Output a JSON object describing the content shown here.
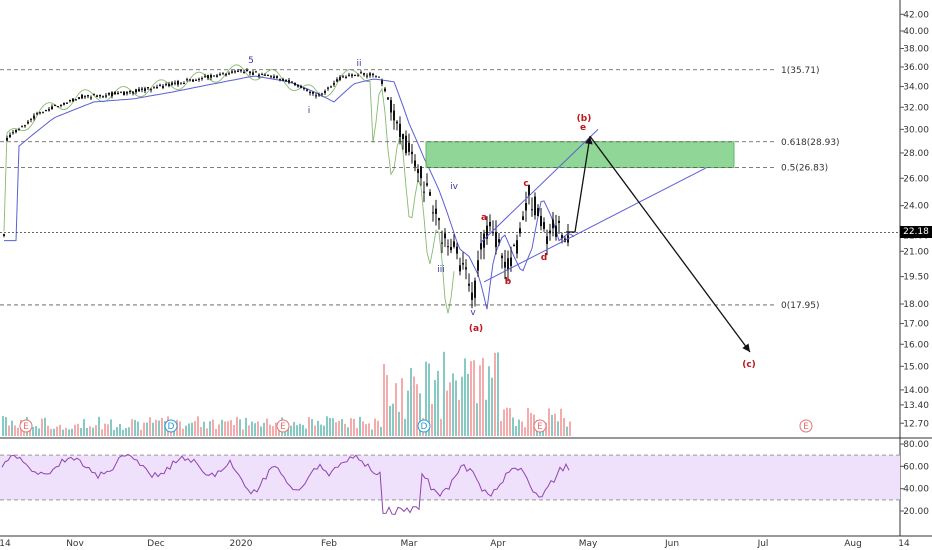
{
  "chart_data": {
    "type": "candlestick",
    "price_axis": {
      "ticks": [
        "42.00",
        "40.00",
        "38.00",
        "36.00",
        "34.00",
        "32.00",
        "30.00",
        "28.00",
        "26.00",
        "24.00",
        "22.00",
        "21.00",
        "19.50",
        "18.00",
        "17.00",
        "16.00",
        "15.00",
        "14.00",
        "13.40",
        "12.70"
      ],
      "tick_values": [
        42,
        40,
        38,
        36,
        34,
        32,
        30,
        28,
        26,
        24,
        22,
        21,
        19.5,
        18,
        17,
        16,
        15,
        14,
        13.4,
        12.7
      ],
      "last_price": "22.18",
      "scale": "log"
    },
    "rsi_axis": {
      "ticks": [
        "80.00",
        "60.00",
        "40.00",
        "20.00"
      ],
      "tick_values": [
        80,
        60,
        40,
        20
      ],
      "band": [
        30,
        70
      ]
    },
    "time_axis": {
      "labels": [
        "14",
        "Nov",
        "Dec",
        "2020",
        "Feb",
        "Mar",
        "Apr",
        "May",
        "Jun",
        "Jul",
        "Aug",
        "14"
      ]
    },
    "fib_levels": [
      {
        "label": "1(35.71)",
        "value": 35.71
      },
      {
        "label": "0.618(28.93)",
        "value": 28.93
      },
      {
        "label": "0.5(26.83)",
        "value": 26.83
      },
      {
        "label": "0(17.95)",
        "value": 17.95
      }
    ],
    "zone": {
      "from": 26.83,
      "to": 28.93
    },
    "wave_labels": {
      "blue": [
        "5",
        "ii",
        "i",
        "iii",
        "iv",
        "v"
      ],
      "red": [
        "(a)",
        "a",
        "b",
        "c",
        "d",
        "e",
        "(b)",
        "(c)"
      ]
    },
    "event_markers": [
      "E",
      "D",
      "E",
      "D",
      "E",
      "E"
    ],
    "colors": {
      "candle": "#111111",
      "ma_blue": "#5b5fd6",
      "ma_green": "#6aa84f",
      "zone_fill": "#7ccf86",
      "vol_up": "#5fb8b0",
      "vol_down": "#ef8f8f",
      "rsi": "#8e44ad",
      "rsi_band": "#efe0fb",
      "wave_red": "#c0151b",
      "wave_blue": "#3a3aa8"
    }
  }
}
